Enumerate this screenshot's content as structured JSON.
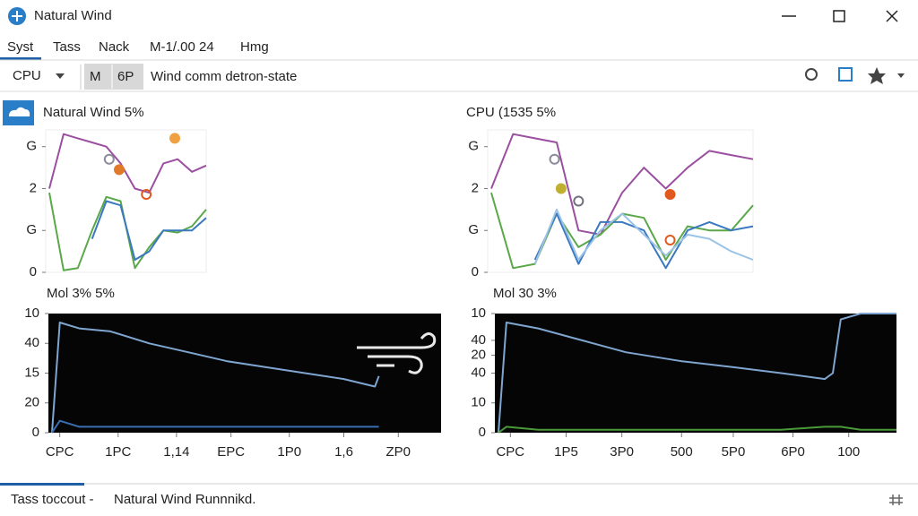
{
  "window": {
    "title": "Natural Wind"
  },
  "menu": [
    "Syst",
    "Tass",
    "Nack",
    "M-1/.00 24",
    "Hmg"
  ],
  "toolbar": {
    "dropdown": "CPU",
    "buttons": [
      "M",
      "6P"
    ],
    "label": "Wind comm detron-state"
  },
  "status": {
    "left": "Tass toccout -",
    "right": "Natural Wind Runnnikd."
  },
  "chart_data": [
    {
      "type": "line",
      "title": "Natural Wind 5%",
      "ylim": [
        0,
        3.4
      ],
      "yticks": [
        {
          "value": 3,
          "label": "G"
        },
        2,
        {
          "value": 1,
          "label": "G"
        },
        0
      ],
      "series": [
        {
          "color": "#9b4fa0",
          "values": [
            2.0,
            3.3,
            3.2,
            3.1,
            3.0,
            2.6,
            2.0,
            1.9,
            2.6,
            2.7,
            2.4,
            2.55
          ]
        },
        {
          "color": "#5aa84a",
          "values": [
            1.9,
            0.05,
            0.1,
            1.0,
            1.8,
            1.7,
            0.1,
            0.6,
            1.0,
            0.95,
            1.1,
            1.5
          ]
        },
        {
          "color": "#3a78c0",
          "values": [
            null,
            null,
            null,
            0.8,
            1.7,
            1.6,
            0.3,
            0.5,
            1.0,
            1.0,
            1.0,
            1.3
          ]
        }
      ],
      "markers": [
        {
          "x": 4.2,
          "y": 2.7,
          "color": "#8a8a9a"
        },
        {
          "x": 4.9,
          "y": 2.45,
          "color": "#e07a2a"
        },
        {
          "x": 6.8,
          "y": 1.86,
          "color": "#e05a20"
        },
        {
          "x": 8.8,
          "y": 3.2,
          "color": "#f0a040"
        }
      ]
    },
    {
      "type": "line",
      "title": "CPU (1535 5%",
      "ylim": [
        0,
        3.4
      ],
      "yticks": [
        {
          "value": 3,
          "label": "G"
        },
        2,
        {
          "value": 1,
          "label": "G"
        },
        0
      ],
      "series": [
        {
          "color": "#9b4fa0",
          "values": [
            2.0,
            3.3,
            3.2,
            3.1,
            1.0,
            0.9,
            1.9,
            2.5,
            2.0,
            2.5,
            2.9,
            2.8,
            2.7
          ]
        },
        {
          "color": "#5aa84a",
          "values": [
            1.9,
            0.1,
            0.2,
            1.4,
            0.6,
            0.9,
            1.4,
            1.3,
            0.3,
            1.1,
            1.0,
            1.0,
            1.6
          ]
        },
        {
          "color": "#3a78c0",
          "values": [
            null,
            null,
            0.3,
            1.4,
            0.2,
            1.2,
            1.2,
            1.0,
            0.1,
            1.0,
            1.2,
            1.0,
            1.1
          ]
        },
        {
          "color": "#9cc3e6",
          "values": [
            null,
            null,
            0.2,
            1.5,
            0.3,
            1.0,
            1.4,
            0.9,
            0.4,
            0.9,
            0.8,
            0.5,
            0.3
          ]
        }
      ],
      "markers": [
        {
          "x": 2.9,
          "y": 2.7,
          "color": "#8a8a9a"
        },
        {
          "x": 3.2,
          "y": 2.0,
          "color": "#c0b030"
        },
        {
          "x": 4.0,
          "y": 1.7,
          "color": "#707080"
        },
        {
          "x": 8.2,
          "y": 1.86,
          "color": "#e05a20"
        },
        {
          "x": 8.2,
          "y": 0.77,
          "color": "#e05a20"
        }
      ]
    },
    {
      "type": "line",
      "title": "Mol 3% 5%",
      "ylim": [
        0,
        40
      ],
      "xlim": [
        0,
        100
      ],
      "yticks": [
        {
          "value": 40,
          "label": "10"
        },
        {
          "value": 30,
          "label": "40"
        },
        {
          "value": 20,
          "label": "15"
        },
        {
          "value": 10,
          "label": "20"
        },
        0
      ],
      "xticks": [
        {
          "value": 2,
          "label": "CPC"
        },
        {
          "value": 17,
          "label": "1PC"
        },
        {
          "value": 32,
          "label": "1,14"
        },
        {
          "value": 46,
          "label": "EPC",
          "color": "#3a9a3a"
        },
        {
          "value": 61,
          "label": "1P0"
        },
        {
          "value": 75,
          "label": "1,6"
        },
        {
          "value": 89,
          "label": "ZP0",
          "color": "#3a9a3a"
        }
      ],
      "x": [
        0,
        2,
        7,
        15,
        25,
        35,
        45,
        55,
        65,
        75,
        83,
        84
      ],
      "series": [
        {
          "color": "#7fa6d0",
          "values": [
            0,
            37,
            35,
            34,
            30,
            27,
            24,
            22,
            20,
            18,
            15.5,
            19
          ]
        },
        {
          "color": "#3a6fb0",
          "values": [
            0,
            4,
            2,
            2,
            2,
            2,
            2,
            2,
            2,
            2,
            2,
            2
          ]
        }
      ]
    },
    {
      "type": "line",
      "title": "Mol 30 3%",
      "ylim": [
        0,
        40
      ],
      "xlim": [
        0,
        100
      ],
      "yticks": [
        {
          "value": 40,
          "label": "10"
        },
        {
          "value": 31,
          "label": "40"
        },
        {
          "value": 26,
          "label": "20"
        },
        {
          "value": 20,
          "label": "40"
        },
        10,
        0
      ],
      "xticks": [
        {
          "value": 3,
          "label": "CPC"
        },
        {
          "value": 17,
          "label": "1P5",
          "color": "#3a9a3a"
        },
        {
          "value": 31,
          "label": "3P0"
        },
        {
          "value": 46,
          "label": "500"
        },
        {
          "value": 59,
          "label": "5P0"
        },
        {
          "value": 74,
          "label": "6P0"
        },
        {
          "value": 88,
          "label": "100"
        }
      ],
      "x": [
        0,
        2,
        10,
        21,
        32,
        46,
        59,
        71,
        82,
        84,
        86,
        91,
        100
      ],
      "series": [
        {
          "color": "#7fa6d0",
          "values": [
            0,
            37,
            35,
            31,
            27,
            24,
            22,
            20,
            18,
            20,
            38,
            40,
            40
          ]
        },
        {
          "color": "#4a9a3a",
          "values": [
            0,
            2,
            1,
            1,
            1,
            1,
            1,
            1,
            2,
            2,
            2,
            1,
            1
          ]
        }
      ]
    }
  ]
}
